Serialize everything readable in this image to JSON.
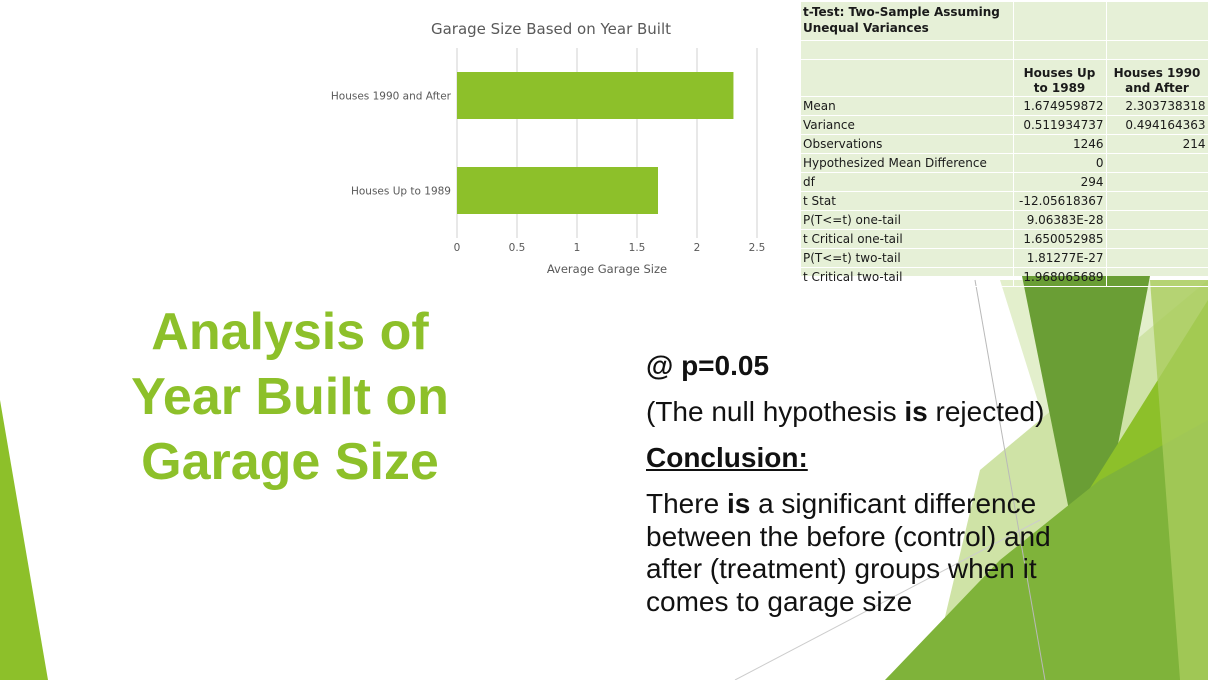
{
  "chart_data": {
    "type": "bar",
    "orientation": "horizontal",
    "title": "Garage Size Based on Year Built",
    "categories": [
      "Houses 1990 and After",
      "Houses Up to 1989"
    ],
    "values": [
      2.303738318,
      1.674959872
    ],
    "xlabel": "Average Garage Size",
    "ylabel": "",
    "xlim": [
      0,
      2.5
    ],
    "ticks": [
      "0",
      "0.5",
      "1",
      "1.5",
      "2",
      "2.5"
    ],
    "grid": true,
    "color": "#8dc02a"
  },
  "ttest": {
    "title": "t-Test: Two-Sample Assuming Unequal Variances",
    "col1": "Houses Up to 1989",
    "col2": "Houses 1990 and After",
    "rows": [
      {
        "label": "Mean",
        "v1": "1.674959872",
        "v2": "2.303738318"
      },
      {
        "label": "Variance",
        "v1": "0.511934737",
        "v2": "0.494164363"
      },
      {
        "label": "Observations",
        "v1": "1246",
        "v2": "214"
      },
      {
        "label": "Hypothesized Mean Difference",
        "v1": "0",
        "v2": ""
      },
      {
        "label": "df",
        "v1": "294",
        "v2": ""
      },
      {
        "label": "t Stat",
        "v1": "-12.05618367",
        "v2": ""
      },
      {
        "label": "P(T<=t) one-tail",
        "v1": "9.06383E-28",
        "v2": ""
      },
      {
        "label": "t Critical one-tail",
        "v1": "1.650052985",
        "v2": ""
      },
      {
        "label": "P(T<=t) two-tail",
        "v1": "1.81277E-27",
        "v2": ""
      },
      {
        "label": "t Critical two-tail",
        "v1": "1.968065689",
        "v2": ""
      }
    ]
  },
  "slide": {
    "title_lines": [
      "Analysis of",
      "Year Built on",
      "Garage Size"
    ],
    "p_value": "@ p=0.05",
    "null_pre": "(The null hypothesis ",
    "null_bold": "is",
    "null_post": " rejected)",
    "conclusion_label": "Conclusion:",
    "concl_pre": "There ",
    "concl_bold": "is",
    "concl_post": " a significant difference between the before (control) and after (treatment) groups when it comes to garage size"
  },
  "colors": {
    "accent": "#8dc02a",
    "table_bg": "#e6f0d7",
    "deco_dark": "#5f9a2f",
    "deco_light": "#cfe3a6"
  }
}
